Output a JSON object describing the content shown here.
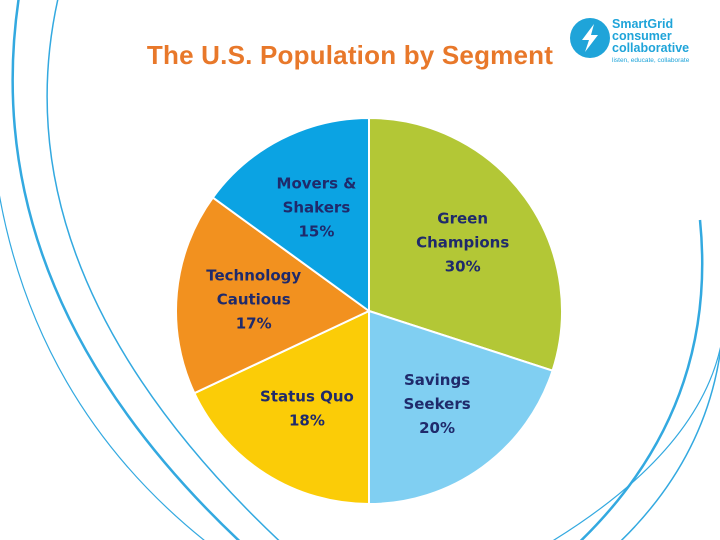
{
  "slide": {
    "title": "The U.S. Population by Segment"
  },
  "logo": {
    "line1": "SmartGrid",
    "line2": "consumer",
    "line3": "collaborative",
    "tagline": "listen, educate, collaborate",
    "icon": "lightning-bolt-icon",
    "color": "#1fa4d9"
  },
  "chart_data": {
    "type": "pie",
    "title": "The U.S. Population by Segment",
    "start_angle_deg": 0,
    "direction": "clockwise",
    "slices": [
      {
        "label_lines": [
          "Green",
          "Champions"
        ],
        "value_text": "30%",
        "value": 30,
        "color": "#b3c736"
      },
      {
        "label_lines": [
          "Savings",
          "Seekers"
        ],
        "value_text": "20%",
        "value": 20,
        "color": "#80cff2"
      },
      {
        "label_lines": [
          "Status Quo"
        ],
        "value_text": "18%",
        "value": 18,
        "color": "#fbcc07"
      },
      {
        "label_lines": [
          "Technology",
          "Cautious"
        ],
        "value_text": "17%",
        "value": 17,
        "color": "#f2911f"
      },
      {
        "label_lines": [
          "Movers &",
          "Shakers"
        ],
        "value_text": "15%",
        "value": 15,
        "color": "#0ba3e3"
      }
    ]
  }
}
